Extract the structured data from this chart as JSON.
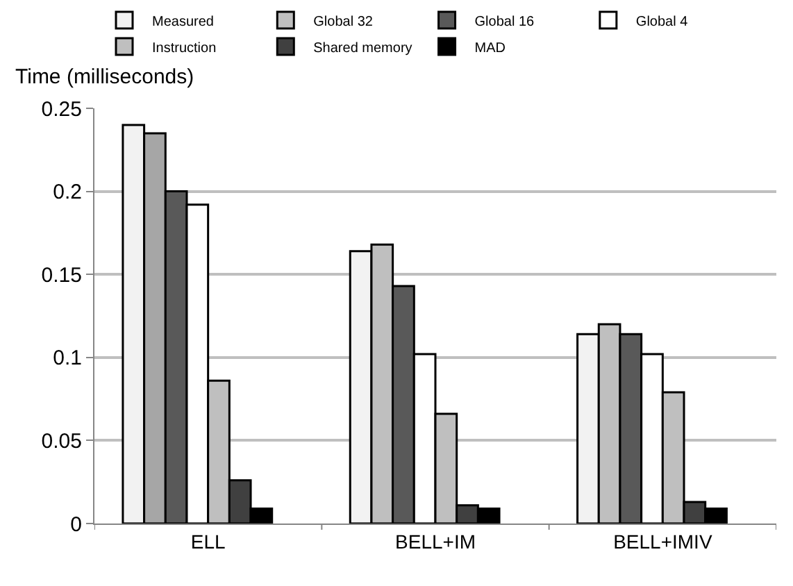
{
  "chart_data": {
    "type": "bar",
    "ylabel": "Time (milliseconds)",
    "categories": [
      "ELL",
      "BELL+IM",
      "BELL+IMIV"
    ],
    "series": [
      {
        "name": "Measured",
        "color": "#f2f2f2",
        "values": [
          0.24,
          0.164,
          0.114
        ]
      },
      {
        "name": "Global 32",
        "color": "#bfbfbf",
        "colors": [
          "#a6a6a6",
          "#bfbfbf",
          "#bfbfbf"
        ],
        "values": [
          0.235,
          0.168,
          0.12
        ]
      },
      {
        "name": "Global 16",
        "color": "#595959",
        "values": [
          0.2,
          0.143,
          0.114
        ]
      },
      {
        "name": "Global 4",
        "color": "#ffffff",
        "values": [
          0.192,
          0.102,
          0.102
        ]
      },
      {
        "name": "Instruction",
        "color": "#bfbfbf",
        "values": [
          0.086,
          0.066,
          0.079
        ]
      },
      {
        "name": "Shared memory",
        "color": "#404040",
        "values": [
          0.026,
          0.011,
          0.013
        ]
      },
      {
        "name": "MAD",
        "color": "#000000",
        "values": [
          0.009,
          0.009,
          0.009
        ]
      }
    ],
    "ylim": [
      0,
      0.25
    ],
    "yticks": [
      0,
      0.05,
      0.1,
      0.15,
      0.2,
      0.25
    ],
    "grid": "y",
    "legend": "top"
  }
}
